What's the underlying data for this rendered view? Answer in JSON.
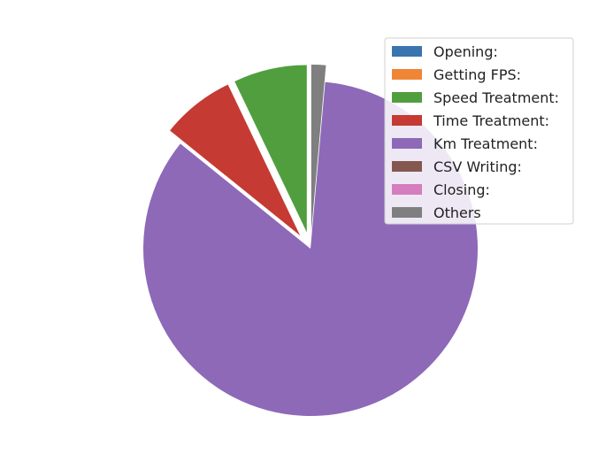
{
  "chart_data": {
    "type": "pie",
    "title": "",
    "start_angle_deg": 90,
    "direction": "counterclockwise",
    "legend_placement": "top-right",
    "slices": [
      {
        "label": "Opening:",
        "value": 0.0,
        "color": "#3a75af",
        "exploded": false
      },
      {
        "label": "Getting FPS:",
        "value": 0.0,
        "color": "#ef8636",
        "exploded": false
      },
      {
        "label": "Speed Treatment:",
        "value": 7.1,
        "color": "#519e3e",
        "exploded": true
      },
      {
        "label": "Time Treatment:",
        "value": 7.1,
        "color": "#c53a32",
        "exploded": true
      },
      {
        "label": "Km Treatment:",
        "value": 84.4,
        "color": "#8d69b8",
        "exploded": false
      },
      {
        "label": "CSV Writing:",
        "value": 0.0,
        "color": "#84584e",
        "exploded": false
      },
      {
        "label": "Closing:",
        "value": 0.0,
        "color": "#d57dbe",
        "exploded": false
      },
      {
        "label": "Others",
        "value": 1.4,
        "color": "#7f7f7f",
        "exploded": true
      }
    ]
  }
}
